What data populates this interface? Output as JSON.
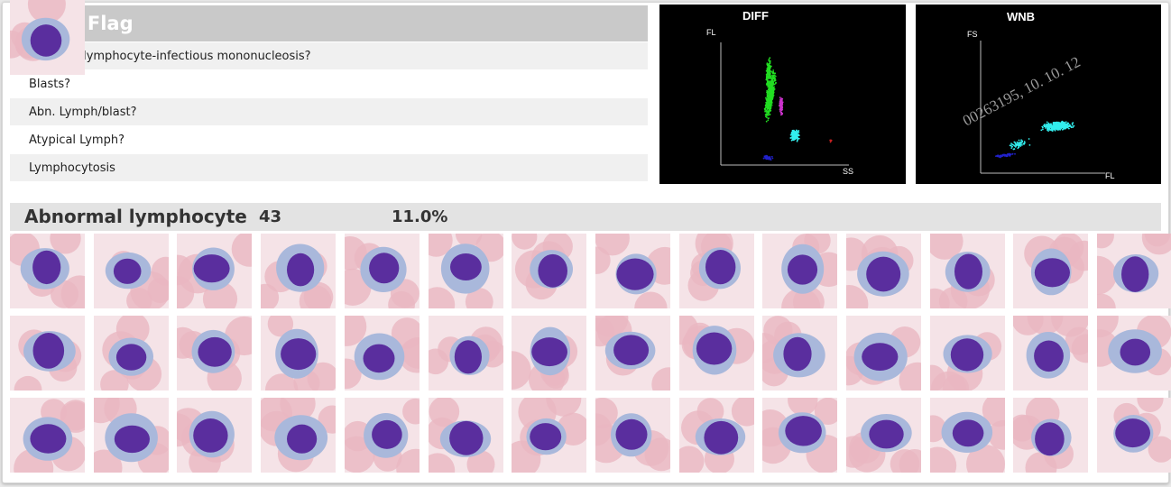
{
  "wbc_flag": {
    "title": "WBC Flag",
    "flags": [
      "Reactive lymphocyte-infectious mononucleosis?",
      "Blasts?",
      "Abn. Lymph/blast?",
      "Atypical Lymph?",
      "Lymphocytosis"
    ]
  },
  "scattergrams": {
    "diff": {
      "title": "DIFF",
      "y_label": "FL",
      "x_label": "SS"
    },
    "wnb": {
      "title": "WNB",
      "y_label": "FS",
      "x_label": "FL",
      "watermark": "00263195, 10. 10. 12"
    }
  },
  "abnormal_lymphocyte": {
    "label": "Abnormal lymphocyte",
    "count": "43",
    "percent": "11.0%"
  },
  "cell_images": {
    "total": 43,
    "columns": 14,
    "nucleus_color": "#5a2e9e",
    "cytoplasm_color": "#a9b8db",
    "rbc_color": "#eab6c2",
    "background_color": "#f5e3e7"
  },
  "colors": {
    "header_gray": "#c9c9c9",
    "row_alt": "#f0f0f0",
    "bar_gray": "#e3e3e3",
    "lymph_green": "#22dd22",
    "mono_magenta": "#cc33cc",
    "neut_cyan": "#33eeee",
    "eos_red": "#cc2222",
    "blue": "#2222cc"
  }
}
